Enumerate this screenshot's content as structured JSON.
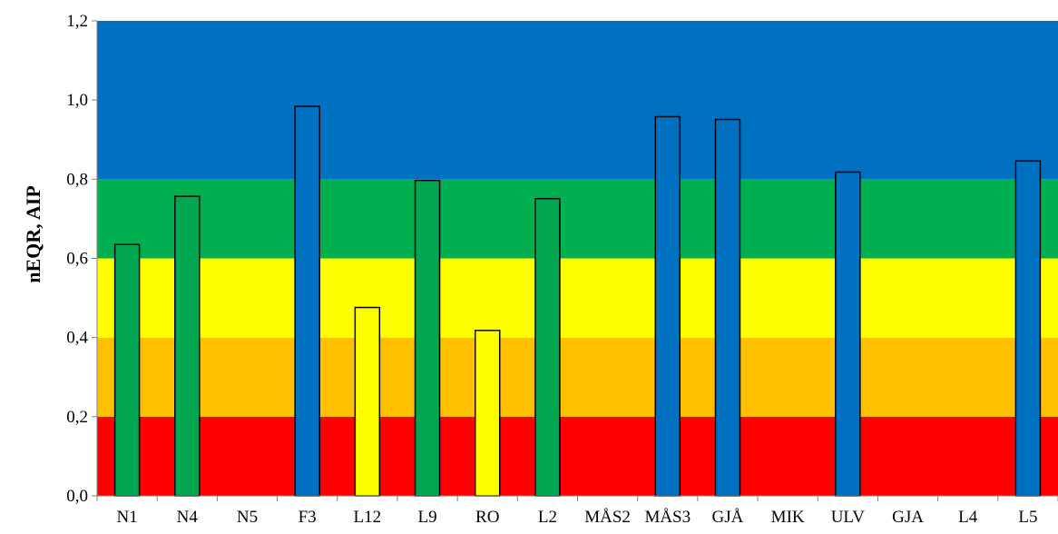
{
  "chart_data": {
    "type": "bar",
    "ylabel": "nEQR, AIP",
    "xlabel": "",
    "ylim": [
      0,
      1.2
    ],
    "y_ticks": [
      "0,0",
      "0,2",
      "0,4",
      "0,6",
      "0,8",
      "1,0",
      "1,2"
    ],
    "y_tick_values": [
      0,
      0.2,
      0.4,
      0.6,
      0.8,
      1.0,
      1.2
    ],
    "categories": [
      "N1",
      "N4",
      "N5",
      "F3",
      "L12",
      "L9",
      "RO",
      "L2",
      "MÅS2",
      "MÅS3",
      "GJÅ",
      "MIK",
      "ULV",
      "GJA",
      "L4",
      "L5"
    ],
    "values": [
      0.635,
      0.757,
      null,
      0.984,
      0.476,
      0.797,
      0.418,
      0.751,
      null,
      0.958,
      0.951,
      null,
      0.818,
      null,
      null,
      0.846
    ],
    "bar_colors": [
      "#00A650",
      "#00A650",
      null,
      "#0070C0",
      "#FFFF00",
      "#00A650",
      "#FFFF00",
      "#00A650",
      null,
      "#0070C0",
      "#0070C0",
      null,
      "#0070C0",
      null,
      null,
      "#0070C0"
    ],
    "class_bands": [
      {
        "from": 0.0,
        "to": 0.2,
        "color": "#FF0000"
      },
      {
        "from": 0.2,
        "to": 0.4,
        "color": "#FFC000"
      },
      {
        "from": 0.4,
        "to": 0.6,
        "color": "#FFFF00"
      },
      {
        "from": 0.6,
        "to": 0.8,
        "color": "#00B050"
      },
      {
        "from": 0.8,
        "to": 1.2,
        "color": "#0070C0"
      }
    ],
    "grid": false,
    "legend": "none"
  }
}
